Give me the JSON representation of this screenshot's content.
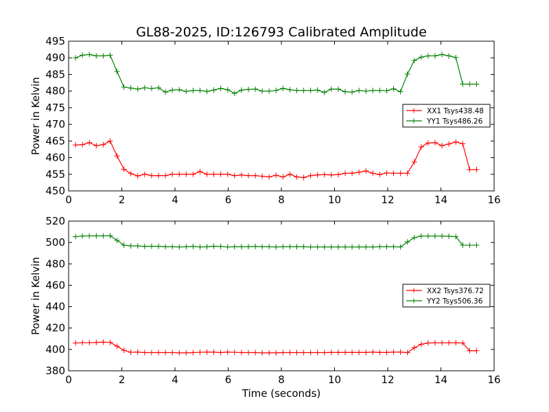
{
  "chart_data": [
    {
      "type": "line",
      "title": "GL88-2025, ID:126793 Calibrated Amplitude",
      "xlabel": "",
      "ylabel": "Power in Kelvin",
      "xlim": [
        0,
        16
      ],
      "ylim": [
        450,
        495
      ],
      "xticks": [
        0,
        2,
        4,
        6,
        8,
        10,
        12,
        14,
        16
      ],
      "yticks": [
        450,
        455,
        460,
        465,
        470,
        475,
        480,
        485,
        490,
        495
      ],
      "legend_position": "center-right",
      "x": [
        0.26,
        0.52,
        0.78,
        1.04,
        1.3,
        1.56,
        1.82,
        2.08,
        2.34,
        2.6,
        2.86,
        3.12,
        3.38,
        3.64,
        3.9,
        4.16,
        4.42,
        4.68,
        4.94,
        5.2,
        5.46,
        5.72,
        5.98,
        6.24,
        6.5,
        6.76,
        7.02,
        7.28,
        7.54,
        7.8,
        8.06,
        8.32,
        8.58,
        8.84,
        9.1,
        9.36,
        9.62,
        9.88,
        10.14,
        10.4,
        10.66,
        10.92,
        11.18,
        11.44,
        11.7,
        11.96,
        12.22,
        12.48,
        12.74,
        13.0,
        13.26,
        13.52,
        13.78,
        14.04,
        14.3,
        14.56,
        14.82,
        15.08,
        15.34
      ],
      "series": [
        {
          "name": "XX1 Tsys438.48",
          "color": "#ff0000",
          "values": [
            463.8,
            463.9,
            464.5,
            463.6,
            463.9,
            465.0,
            460.5,
            456.5,
            455.2,
            454.5,
            455.0,
            454.6,
            454.6,
            454.6,
            455.0,
            455.0,
            455.0,
            455.0,
            455.8,
            455.0,
            455.0,
            455.0,
            455.0,
            454.6,
            454.8,
            454.6,
            454.6,
            454.4,
            454.2,
            454.7,
            454.2,
            455.0,
            454.2,
            454.0,
            454.6,
            454.8,
            454.9,
            454.8,
            454.9,
            455.3,
            455.3,
            455.6,
            456.0,
            455.3,
            454.9,
            455.4,
            455.3,
            455.3,
            455.3,
            458.7,
            463.2,
            464.4,
            464.5,
            463.6,
            464.1,
            464.7,
            464.2,
            456.4,
            456.4
          ]
        },
        {
          "name": "YY1 Tsys486.26",
          "color": "#008000",
          "values": [
            490.0,
            490.8,
            491.0,
            490.6,
            490.6,
            490.8,
            485.9,
            481.2,
            480.9,
            480.6,
            481.0,
            480.8,
            481.0,
            479.7,
            480.3,
            480.4,
            479.9,
            480.2,
            480.2,
            479.9,
            480.3,
            480.8,
            480.4,
            479.3,
            480.3,
            480.5,
            480.6,
            480.0,
            480.0,
            480.2,
            480.8,
            480.4,
            480.2,
            480.2,
            480.2,
            480.3,
            479.6,
            480.6,
            480.6,
            479.8,
            479.7,
            480.2,
            480.0,
            480.2,
            480.2,
            480.1,
            480.7,
            479.8,
            485.1,
            489.2,
            490.2,
            490.6,
            490.6,
            491.0,
            490.6,
            490.1,
            482.1,
            482.1,
            482.1
          ]
        }
      ]
    },
    {
      "type": "line",
      "title": "",
      "xlabel": "Time (seconds)",
      "ylabel": "Power in Kelvin",
      "xlim": [
        0,
        16
      ],
      "ylim": [
        380,
        520
      ],
      "xticks": [
        0,
        2,
        4,
        6,
        8,
        10,
        12,
        14,
        16
      ],
      "yticks": [
        380,
        400,
        420,
        440,
        460,
        480,
        500,
        520
      ],
      "legend_position": "center-right",
      "x": [
        0.26,
        0.52,
        0.78,
        1.04,
        1.3,
        1.56,
        1.82,
        2.08,
        2.34,
        2.6,
        2.86,
        3.12,
        3.38,
        3.64,
        3.9,
        4.16,
        4.42,
        4.68,
        4.94,
        5.2,
        5.46,
        5.72,
        5.98,
        6.24,
        6.5,
        6.76,
        7.02,
        7.28,
        7.54,
        7.8,
        8.06,
        8.32,
        8.58,
        8.84,
        9.1,
        9.36,
        9.62,
        9.88,
        10.14,
        10.4,
        10.66,
        10.92,
        11.18,
        11.44,
        11.7,
        11.96,
        12.22,
        12.48,
        12.74,
        13.0,
        13.26,
        13.52,
        13.78,
        14.04,
        14.3,
        14.56,
        14.82,
        15.08,
        15.34
      ],
      "series": [
        {
          "name": "XX2 Tsys376.72",
          "color": "#ff0000",
          "values": [
            406.0,
            406.3,
            406.3,
            406.5,
            406.8,
            406.6,
            403.0,
            399.2,
            397.3,
            397.5,
            397.0,
            397.0,
            397.0,
            397.0,
            397.0,
            396.8,
            396.8,
            397.0,
            397.3,
            397.5,
            397.5,
            397.0,
            397.5,
            397.3,
            397.0,
            397.0,
            397.0,
            396.8,
            396.8,
            396.8,
            397.0,
            397.0,
            397.0,
            397.0,
            397.0,
            397.0,
            397.0,
            397.2,
            397.2,
            397.2,
            397.2,
            397.2,
            397.2,
            397.5,
            397.2,
            397.2,
            397.5,
            397.5,
            397.0,
            401.5,
            404.8,
            406.0,
            406.2,
            406.2,
            406.2,
            406.2,
            406.0,
            398.8,
            398.8
          ]
        },
        {
          "name": "YY2 Tsys506.36",
          "color": "#008000",
          "values": [
            505.5,
            506.0,
            506.2,
            506.2,
            506.2,
            506.3,
            502.0,
            497.5,
            496.8,
            496.8,
            496.3,
            496.5,
            496.5,
            496.0,
            496.0,
            495.8,
            496.0,
            496.3,
            495.8,
            496.0,
            496.5,
            496.3,
            495.8,
            496.0,
            496.0,
            496.0,
            496.3,
            496.0,
            496.0,
            495.8,
            496.0,
            496.0,
            496.0,
            496.0,
            495.8,
            495.8,
            495.8,
            495.8,
            495.8,
            495.8,
            495.8,
            495.8,
            495.8,
            495.8,
            496.0,
            496.0,
            496.0,
            495.8,
            500.5,
            504.5,
            506.0,
            506.0,
            506.0,
            506.0,
            505.8,
            505.5,
            497.5,
            497.5,
            497.5
          ]
        }
      ]
    }
  ]
}
